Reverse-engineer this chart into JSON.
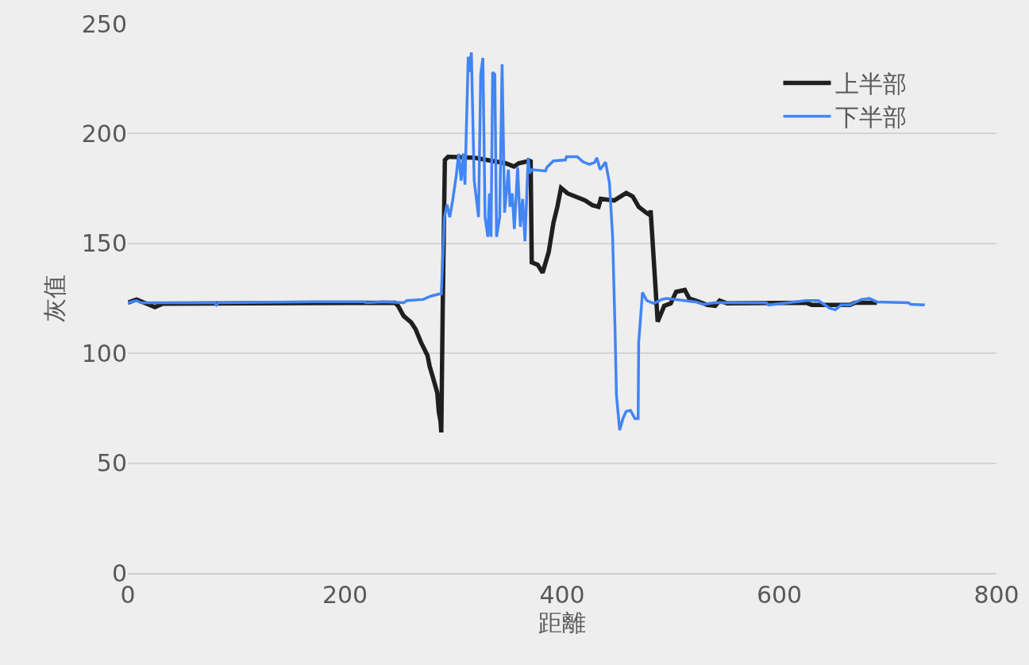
{
  "chart_data": {
    "type": "line",
    "xlabel": "距離",
    "ylabel": "灰值",
    "xlim": [
      0,
      800
    ],
    "xticks": [
      0,
      200,
      400,
      600,
      800
    ],
    "ylim": [
      0,
      250
    ],
    "yticks": [
      0,
      50,
      100,
      150,
      200,
      250
    ],
    "grid": "y",
    "legend": "top right",
    "marker": "none",
    "line_style": "solid",
    "series": [
      {
        "name": "上半部",
        "color": "#1f1f1f",
        "x": [
          0,
          8,
          25,
          32,
          246,
          249,
          254,
          261,
          265,
          270,
          276,
          278,
          281,
          285,
          286.5,
          288,
          288.7,
          290,
          292,
          295,
          319,
          348,
          355.6,
          360,
          370,
          371,
          372,
          377.5,
          382,
          387.6,
          392,
          395.6,
          399,
          405,
          421,
          428,
          433.5,
          435.6,
          448,
          459,
          465,
          470.5,
          478,
          480.7,
          481.5,
          488,
          494,
          500,
          505,
          513,
          517,
          523,
          534,
          541,
          545,
          552,
          625,
          630,
          665,
          670,
          690
        ],
        "values": [
          123,
          124.5,
          121,
          122.6,
          123,
          121.5,
          117,
          114,
          111,
          105,
          99,
          94,
          89,
          82,
          73,
          69,
          64,
          120,
          188,
          189.5,
          189,
          186.5,
          185,
          186.5,
          187.6,
          188,
          141.4,
          140.3,
          136.7,
          146,
          159.5,
          166.7,
          175.3,
          172.8,
          169.6,
          167.4,
          166.7,
          170.3,
          169.6,
          173,
          171.4,
          166.7,
          163.8,
          163,
          165,
          114.4,
          121.6,
          122.7,
          128,
          128.8,
          125,
          124,
          122,
          121.6,
          124,
          122.7,
          123,
          122,
          122,
          123,
          123
        ]
      },
      {
        "name": "下半部",
        "color": "#4285f4",
        "x": [
          0,
          8,
          12,
          80,
          81.5,
          83,
          172,
          217,
          220,
          235.6,
          254,
          257,
          272,
          279,
          286.5,
          288.7,
          291.6,
          294,
          296.5,
          299,
          302.5,
          304.7,
          307,
          309,
          310.5,
          313.5,
          314.5,
          316.4,
          319,
          323,
          325,
          327,
          329,
          331.6,
          333,
          334.5,
          336,
          338,
          339.6,
          342.5,
          344.7,
          347,
          350.5,
          352,
          354,
          356,
          359,
          361.5,
          363.6,
          365.8,
          368.7,
          370,
          372,
          384.7,
          386,
          392,
          403,
          404,
          414,
          419,
          425,
          430,
          432,
          435,
          440,
          443.6,
          446.5,
          448.7,
          450,
          453,
          456,
          459,
          463,
          467,
          470,
          470.5,
          474,
          478,
          484.4,
          491.6,
          496,
          523,
          530,
          540,
          588,
          590,
          625,
          636,
          646.5,
          651.6,
          657,
          665,
          675.6,
          683,
          690,
          719,
          721,
          734
        ],
        "values": [
          123,
          124,
          123,
          123,
          122,
          123,
          123.5,
          123.5,
          123,
          123.5,
          123,
          124,
          124.5,
          126,
          127,
          127,
          162,
          167.7,
          162,
          169,
          181,
          190.8,
          178.6,
          191,
          176.8,
          235,
          228,
          237,
          178.6,
          162,
          227,
          234.5,
          162,
          153,
          172.8,
          153,
          228,
          227,
          153,
          162,
          231.6,
          164,
          183.6,
          166.7,
          172.8,
          156.6,
          184.7,
          157.6,
          170.3,
          151,
          189,
          182,
          183.6,
          183,
          184.7,
          187.6,
          188,
          189.5,
          189.5,
          187.2,
          186,
          186.9,
          189,
          183.6,
          187,
          177.5,
          153,
          111.5,
          81,
          65,
          70.3,
          73.6,
          74,
          70.3,
          70.3,
          105,
          127.7,
          124,
          122.7,
          124.5,
          125,
          123.4,
          122.3,
          123,
          123,
          122,
          124,
          124,
          120.5,
          119.8,
          122,
          122,
          124.5,
          125,
          123.4,
          123,
          122.3,
          122
        ]
      }
    ]
  }
}
